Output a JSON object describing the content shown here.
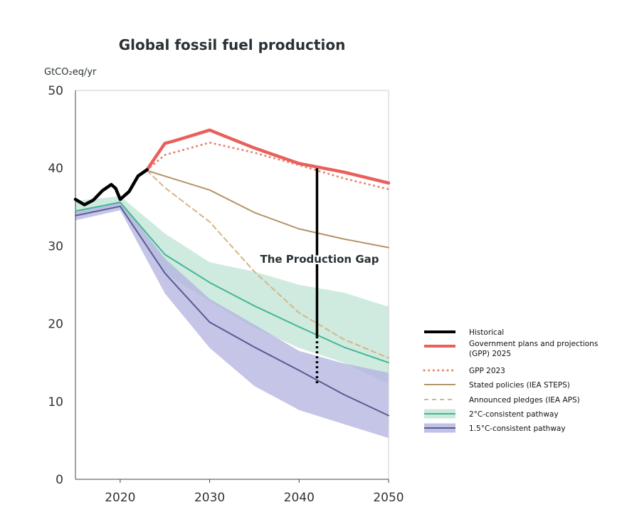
{
  "chart_data": {
    "type": "line",
    "title": "Global fossil fuel production",
    "ylabel": "GtCO₂eq/yr",
    "xlim": [
      2015,
      2050
    ],
    "ylim": [
      0,
      50
    ],
    "xticks": [
      2020,
      2030,
      2040,
      2050
    ],
    "yticks": [
      0,
      10,
      20,
      30,
      40,
      50
    ],
    "legend_position": "right",
    "annotation": "The Production Gap",
    "gap": {
      "x": 2042,
      "y_top": 40.0,
      "y_solid_bottom": 18.4,
      "y_bottom": 12.3
    },
    "series": [
      {
        "name": "Historical",
        "color": "#000000",
        "style": "solid-thick",
        "points": [
          [
            2015,
            36.0
          ],
          [
            2016,
            35.3
          ],
          [
            2017,
            35.9
          ],
          [
            2018,
            37.1
          ],
          [
            2019,
            37.9
          ],
          [
            2019.5,
            37.4
          ],
          [
            2020,
            36.0
          ],
          [
            2021,
            37.0
          ],
          [
            2022,
            39.0
          ],
          [
            2023,
            39.8
          ]
        ]
      },
      {
        "name": "Government plans and projections (GPP) 2025",
        "color": "#e8605c",
        "style": "solid-thick",
        "points": [
          [
            2023,
            39.8
          ],
          [
            2024,
            41.5
          ],
          [
            2025,
            43.2
          ],
          [
            2026,
            43.5
          ],
          [
            2030,
            44.9
          ],
          [
            2035,
            42.6
          ],
          [
            2040,
            40.6
          ],
          [
            2045,
            39.5
          ],
          [
            2050,
            38.1
          ]
        ]
      },
      {
        "name": "GPP 2023",
        "color": "#e8826a",
        "style": "dotted",
        "points": [
          [
            2023,
            39.8
          ],
          [
            2025,
            41.7
          ],
          [
            2030,
            43.3
          ],
          [
            2035,
            42.0
          ],
          [
            2040,
            40.4
          ],
          [
            2045,
            38.7
          ],
          [
            2050,
            37.3
          ]
        ]
      },
      {
        "name": "Stated policies (IEA STEPS)",
        "color": "#b59467",
        "style": "solid",
        "points": [
          [
            2023,
            39.7
          ],
          [
            2030,
            37.2
          ],
          [
            2035,
            34.3
          ],
          [
            2040,
            32.2
          ],
          [
            2045,
            30.9
          ],
          [
            2050,
            29.8
          ]
        ]
      },
      {
        "name": "Announced pledges (IEA APS)",
        "color": "#d6b48a",
        "style": "dashed",
        "points": [
          [
            2023,
            39.7
          ],
          [
            2025,
            37.5
          ],
          [
            2030,
            33.1
          ],
          [
            2035,
            26.7
          ],
          [
            2040,
            21.4
          ],
          [
            2045,
            18.0
          ],
          [
            2050,
            15.6
          ]
        ]
      },
      {
        "name": "2°C-consistent pathway",
        "color": "#40b795",
        "band_color": "#bfe3d3",
        "style": "solid-band",
        "points": [
          [
            2015,
            34.5
          ],
          [
            2020,
            35.6
          ],
          [
            2025,
            28.9
          ],
          [
            2030,
            25.3
          ],
          [
            2035,
            22.3
          ],
          [
            2040,
            19.6
          ],
          [
            2045,
            17.0
          ],
          [
            2050,
            15.0
          ]
        ],
        "upper": [
          [
            2015,
            35.8
          ],
          [
            2020,
            36.4
          ],
          [
            2025,
            31.6
          ],
          [
            2030,
            27.9
          ],
          [
            2035,
            26.7
          ],
          [
            2040,
            25.0
          ],
          [
            2045,
            24.0
          ],
          [
            2050,
            22.2
          ]
        ],
        "lower": [
          [
            2015,
            34.0
          ],
          [
            2020,
            35.3
          ],
          [
            2025,
            26.5
          ],
          [
            2030,
            22.9
          ],
          [
            2035,
            19.5
          ],
          [
            2040,
            16.9
          ],
          [
            2045,
            15.0
          ],
          [
            2050,
            12.3
          ]
        ]
      },
      {
        "name": "1.5°C-consistent pathway",
        "color": "#5b5a95",
        "band_color": "#b2b2df",
        "style": "solid-band",
        "points": [
          [
            2015,
            33.9
          ],
          [
            2020,
            35.1
          ],
          [
            2025,
            26.5
          ],
          [
            2030,
            20.2
          ],
          [
            2035,
            17.0
          ],
          [
            2040,
            14.0
          ],
          [
            2045,
            10.9
          ],
          [
            2050,
            8.2
          ]
        ],
        "upper": [
          [
            2015,
            34.4
          ],
          [
            2020,
            35.8
          ],
          [
            2025,
            28.4
          ],
          [
            2030,
            23.2
          ],
          [
            2035,
            19.9
          ],
          [
            2040,
            16.5
          ],
          [
            2045,
            14.9
          ],
          [
            2050,
            13.7
          ]
        ],
        "lower": [
          [
            2015,
            33.3
          ],
          [
            2020,
            34.6
          ],
          [
            2025,
            23.9
          ],
          [
            2030,
            16.9
          ],
          [
            2035,
            12.0
          ],
          [
            2040,
            8.9
          ],
          [
            2045,
            7.1
          ],
          [
            2050,
            5.3
          ]
        ]
      }
    ]
  }
}
